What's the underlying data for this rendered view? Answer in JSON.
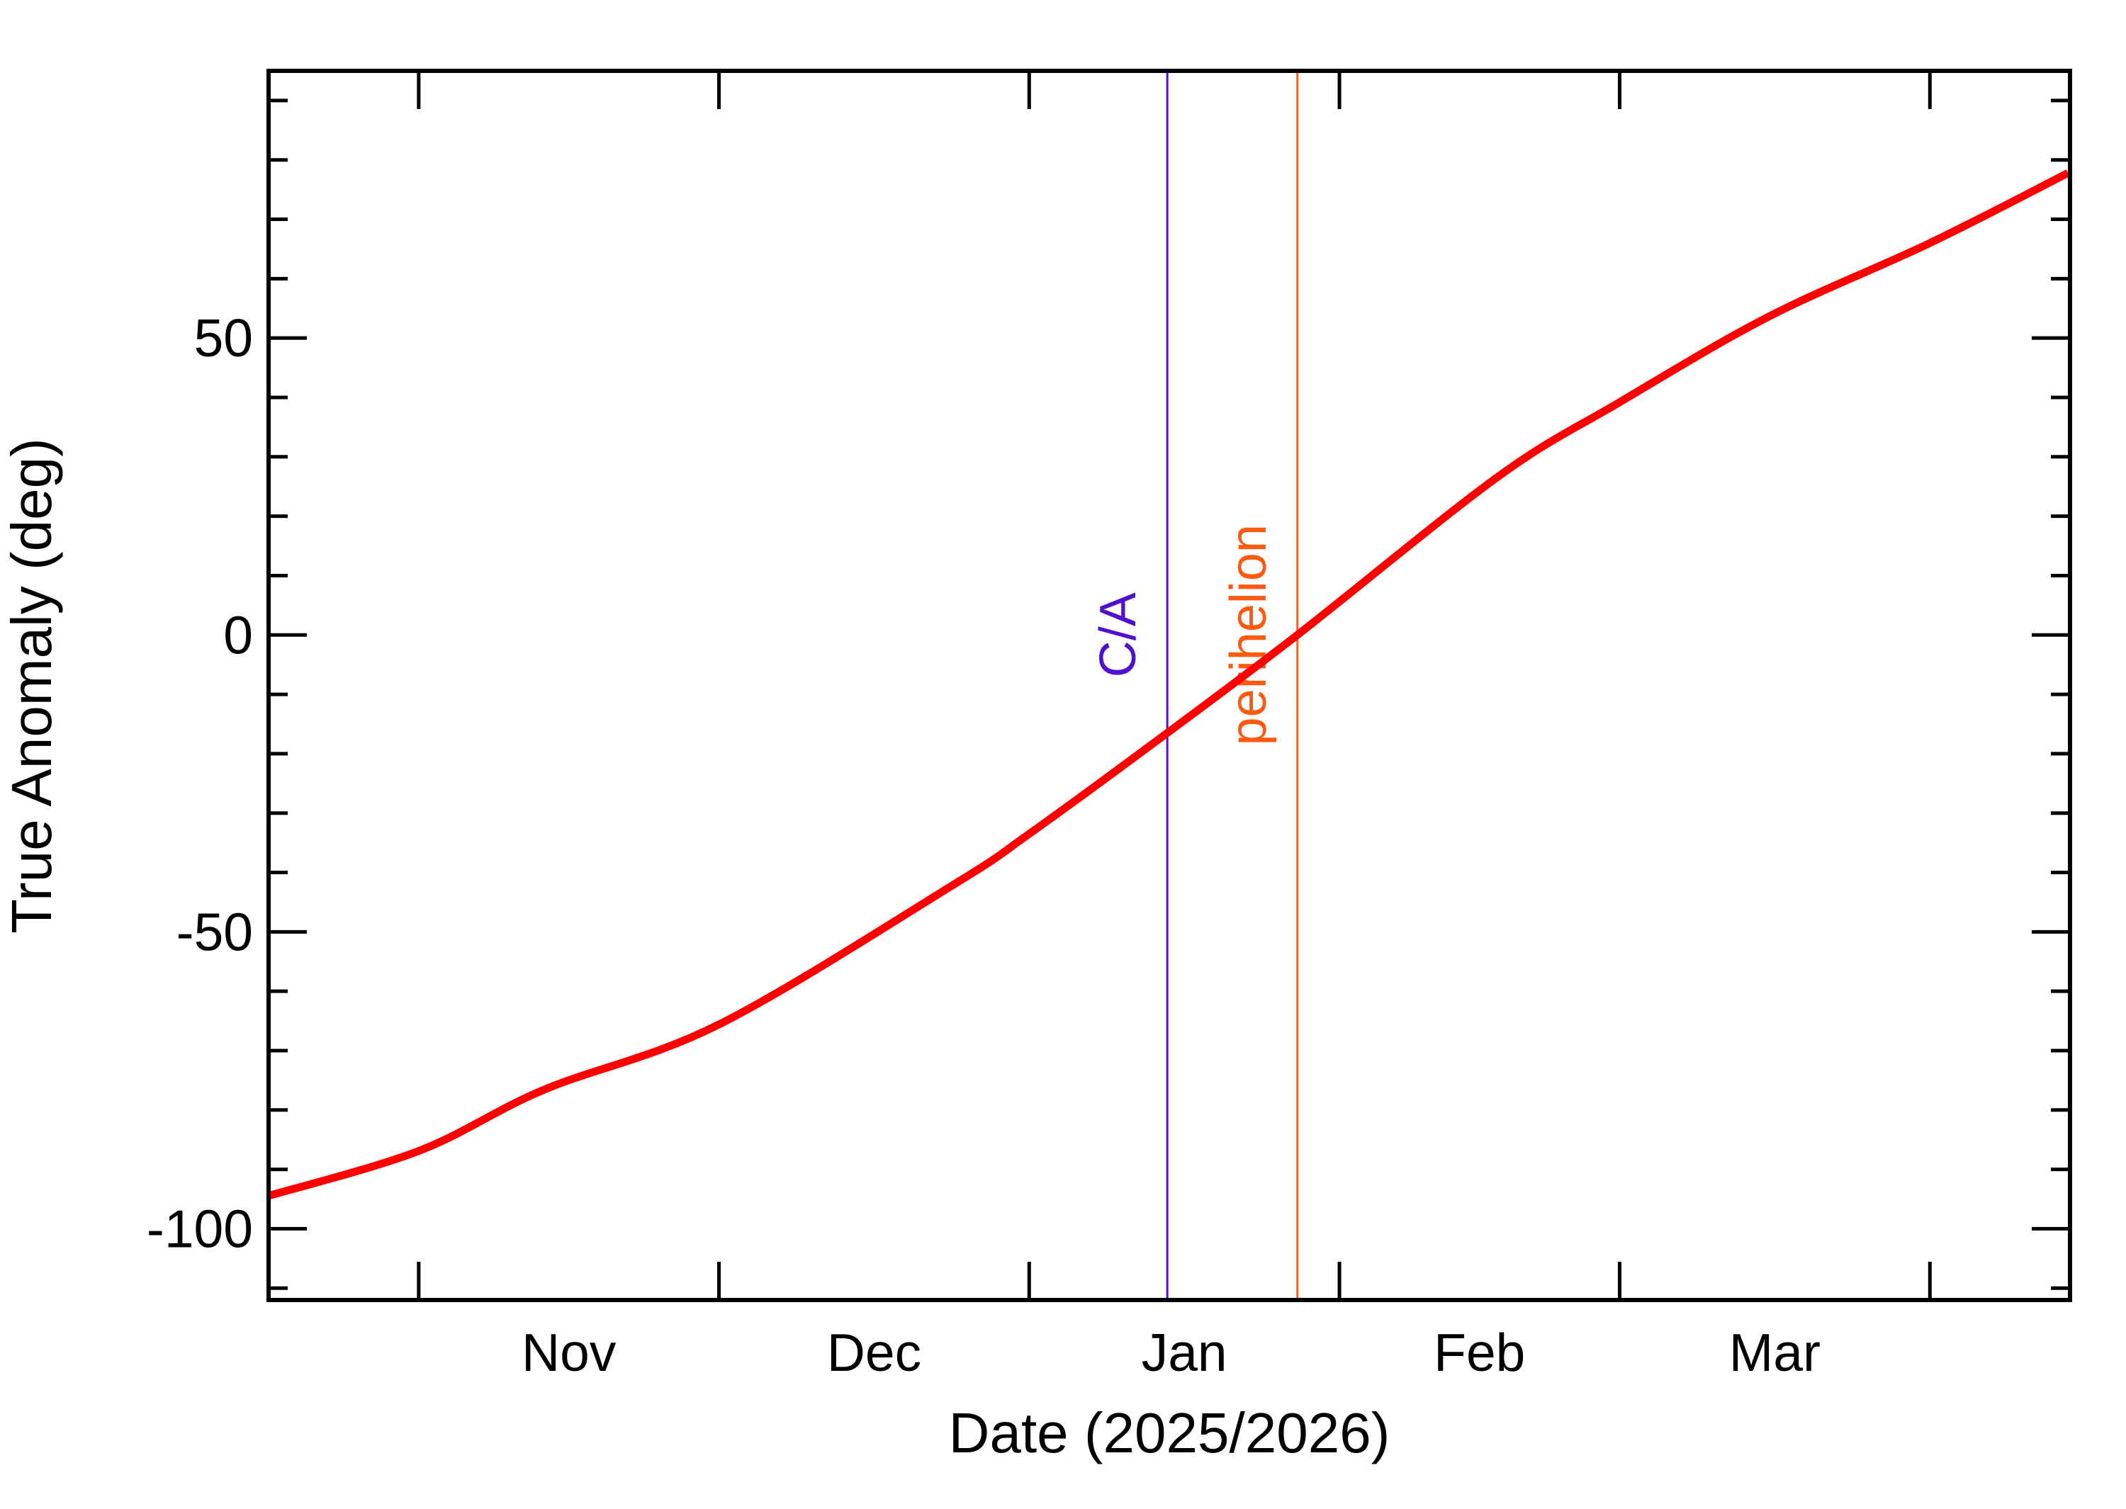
{
  "chart_data": {
    "type": "line",
    "x_label": "Date (2025/2026)",
    "y_label": "True Anomaly (deg)",
    "xlim": [
      -15,
      165
    ],
    "xticks": [
      {
        "value": 15,
        "label": "Nov"
      },
      {
        "value": 45.5,
        "label": "Dec"
      },
      {
        "value": 76.5,
        "label": "Jan"
      },
      {
        "value": 106,
        "label": "Feb"
      },
      {
        "value": 135.5,
        "label": "Mar"
      }
    ],
    "x_boundary_ticks": [
      0,
      30,
      61,
      92,
      120,
      151
    ],
    "ylim": [
      -112,
      95
    ],
    "yticks": [
      -100,
      -50,
      0,
      50
    ],
    "y_minor_ticks": [
      -110,
      -90,
      -80,
      -70,
      -60,
      -40,
      -30,
      -20,
      -10,
      10,
      20,
      30,
      40,
      60,
      70,
      80,
      90
    ],
    "series": [
      {
        "color": "#ff0000",
        "x": [
          -15.1,
          0,
          12.5,
          30,
          53.3,
          61,
          74.8,
          87.8,
          107.8,
          120,
          135,
          151,
          164.8
        ],
        "values": [
          -94.5,
          -86.9,
          -76.6,
          -65.6,
          -42.2,
          -33.5,
          -16.5,
          0,
          26.6,
          39.2,
          53.7,
          66,
          77.8
        ]
      }
    ],
    "events": [
      {
        "label": "C/A",
        "x": 74.8,
        "color": "#5010d0"
      },
      {
        "label": "perihelion",
        "x": 87.8,
        "color": "#ff5a10"
      }
    ]
  }
}
